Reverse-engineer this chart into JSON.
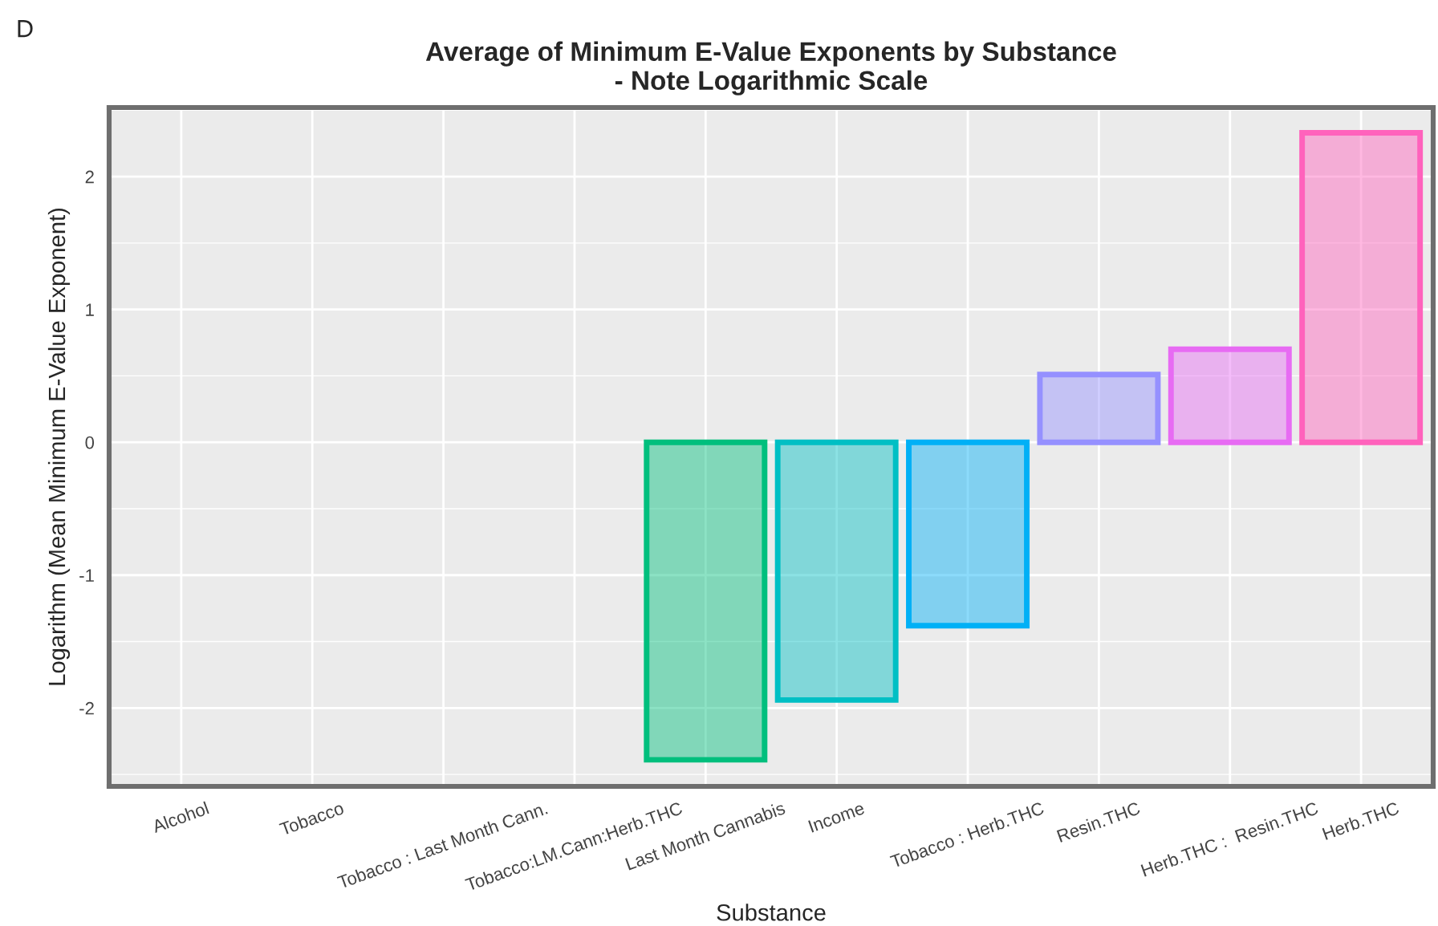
{
  "chart_data": {
    "type": "bar",
    "title": "Average of Minimum E-Value Exponents by Substance\n- Note Logarithmic Scale",
    "xlabel": "Substance",
    "ylabel": "Logarithm (Mean Minimum E-Value Exponent)",
    "categories": [
      "Alcohol",
      "Tobacco",
      "Tobacco : Last Month Cann.",
      "Tobacco:LM.Cann:Herb.THC",
      "Last Month Cannabis",
      "Income",
      "Tobacco : Herb.THC",
      "Resin.THC",
      "Herb.THC :  Resin.THC",
      "Herb.THC"
    ],
    "values": [
      null,
      null,
      null,
      null,
      -2.39,
      -1.94,
      -1.38,
      0.51,
      0.7,
      2.33
    ],
    "colors": [
      "#f8766d",
      "#d89000",
      "#a3a500",
      "#39b600",
      "#00bf7d",
      "#00bfc4",
      "#00b0f6",
      "#9590ff",
      "#e76bf3",
      "#ff62bc"
    ],
    "ylim": [
      -2.59,
      2.52
    ],
    "yticks": [
      -2,
      -1,
      0,
      1,
      2
    ],
    "grid": true,
    "legend": false,
    "annotations": [
      "D"
    ]
  }
}
